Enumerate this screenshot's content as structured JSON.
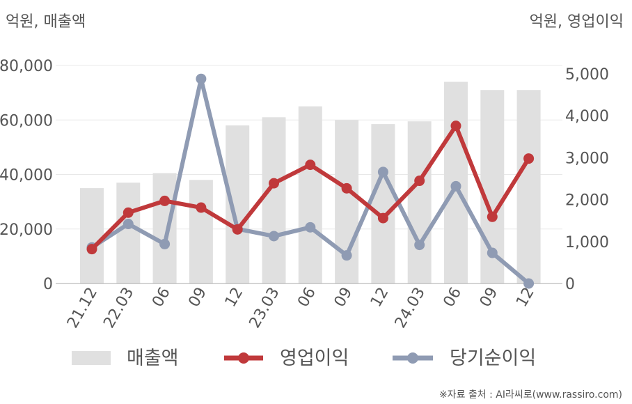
{
  "chart_data": {
    "type": "bar",
    "categories": [
      "21.12",
      "22.03",
      "06",
      "09",
      "12",
      "23.03",
      "06",
      "09",
      "12",
      "24.03",
      "06",
      "09",
      "12"
    ],
    "left_axis_label": "억원, 매출액",
    "right_axis_label": "억원, 영업이익",
    "left_ylim": [
      0,
      80000
    ],
    "left_ticks": [
      0,
      20000,
      40000,
      60000,
      80000
    ],
    "left_tick_labels": [
      "0",
      "20,000",
      "40,000",
      "60,000",
      "80,000"
    ],
    "right_ylim": [
      0,
      5000
    ],
    "right_ticks": [
      0,
      1000,
      2000,
      3000,
      4000,
      5000
    ],
    "right_tick_labels": [
      "0",
      "1,000",
      "2,000",
      "3,000",
      "4,000",
      "5,000"
    ],
    "grid": true,
    "legend_position": "bottom",
    "series": [
      {
        "name": "매출액",
        "type": "bar",
        "axis": "left",
        "color": "#e0e0e0",
        "values": [
          35000,
          37000,
          40500,
          38000,
          58000,
          61000,
          65000,
          60000,
          58500,
          59500,
          74000,
          71000,
          71000
        ]
      },
      {
        "name": "영업이익",
        "type": "line",
        "axis": "right",
        "color": "#c0393b",
        "values": [
          820,
          1690,
          1970,
          1810,
          1290,
          2390,
          2830,
          2270,
          1560,
          2450,
          3760,
          1590,
          2980
        ]
      },
      {
        "name": "당기순이익",
        "type": "line",
        "axis": "right",
        "color": "#8f9bb3",
        "values": [
          860,
          1420,
          940,
          4880,
          1300,
          1130,
          1340,
          670,
          2660,
          920,
          2320,
          730,
          0
        ]
      }
    ],
    "source": "※자료 출처 : AI라씨로(www.rassiro.com)"
  }
}
